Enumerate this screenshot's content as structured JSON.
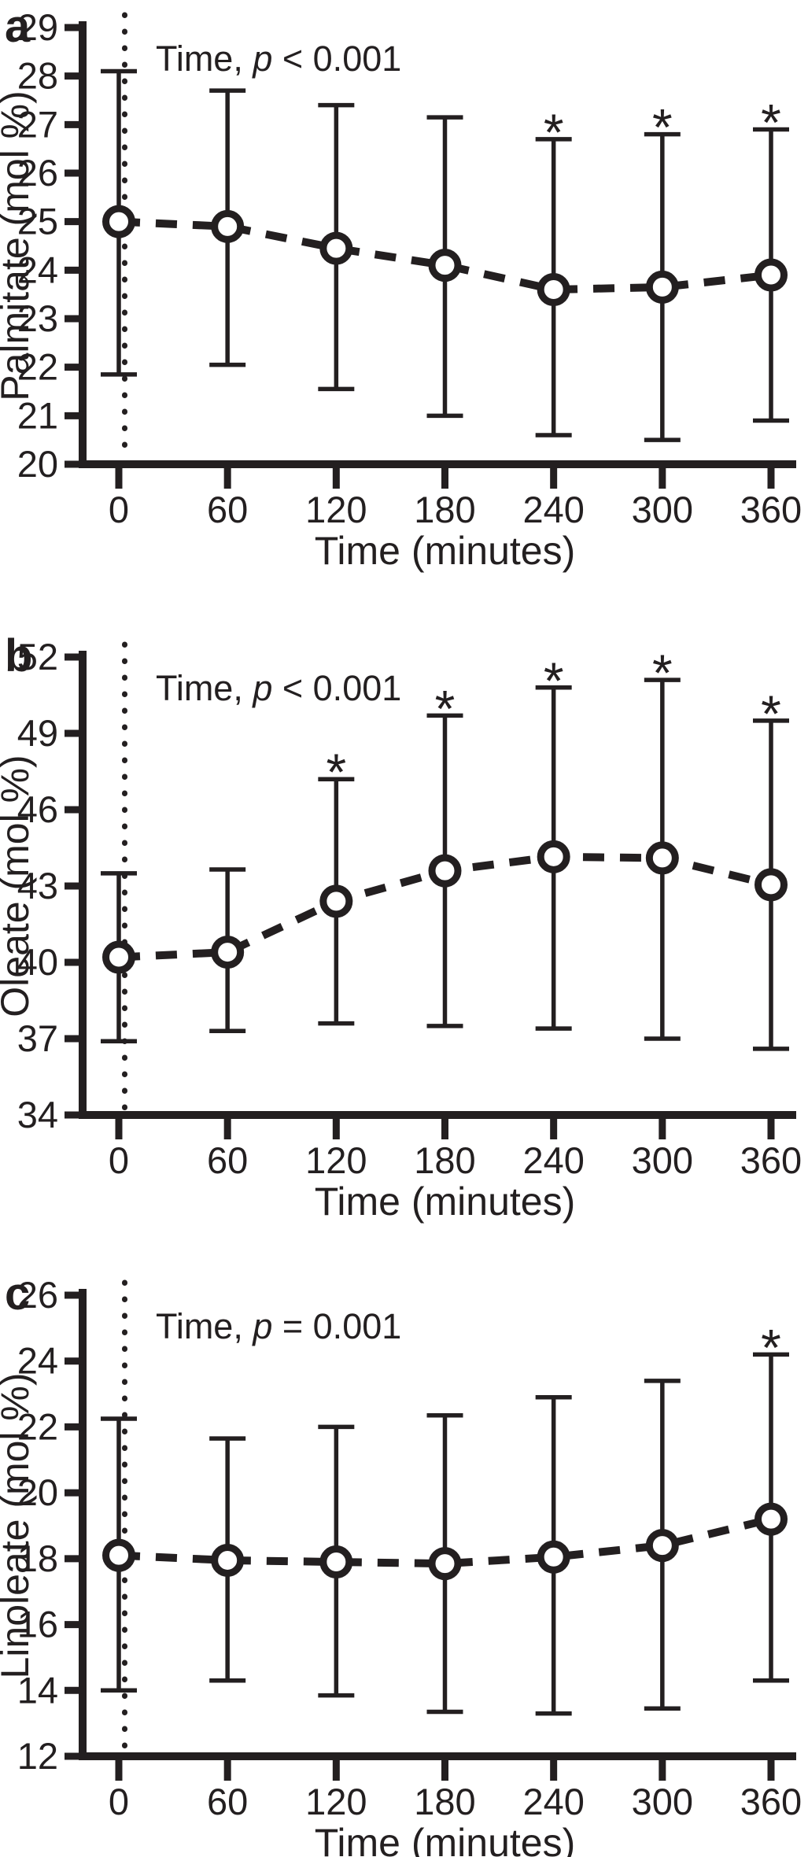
{
  "figure": {
    "background": "#ffffff",
    "ink_color": "#231f20",
    "marker": "open-circle",
    "line_style": "dashed",
    "error_bar_style": "capped-whiskers",
    "significance_symbol": "*"
  },
  "chart_data": [
    {
      "type": "line",
      "panel_label": "a",
      "annotation": {
        "prefix": "Time, ",
        "symbol": "p",
        "suffix": " < 0.001"
      },
      "xlabel": "Time (minutes)",
      "ylabel": "Palmitate (mol %)",
      "x": [
        0,
        60,
        120,
        180,
        240,
        300,
        360
      ],
      "x_tick_labels": [
        "0",
        "60",
        "120",
        "180",
        "240",
        "300",
        "360"
      ],
      "xlim": [
        0,
        360
      ],
      "ylim": [
        20,
        29
      ],
      "y_ticks": [
        20,
        21,
        22,
        23,
        24,
        25,
        26,
        27,
        28,
        29
      ],
      "grid": false,
      "zero_time_dotted_line": true,
      "series": [
        {
          "name": "Palmitate",
          "values": [
            25.0,
            24.9,
            24.45,
            24.1,
            23.6,
            23.65,
            23.9
          ],
          "err_low": [
            21.85,
            22.05,
            21.55,
            21.0,
            20.6,
            20.5,
            20.9
          ],
          "err_high": [
            28.1,
            27.7,
            27.4,
            27.15,
            26.7,
            26.8,
            26.9
          ]
        }
      ],
      "significant": [
        false,
        false,
        false,
        false,
        true,
        true,
        true
      ]
    },
    {
      "type": "line",
      "panel_label": "b",
      "annotation": {
        "prefix": "Time, ",
        "symbol": "p",
        "suffix": " < 0.001"
      },
      "xlabel": "Time (minutes)",
      "ylabel": "Oleate (mol %)",
      "x": [
        0,
        60,
        120,
        180,
        240,
        300,
        360
      ],
      "x_tick_labels": [
        "0",
        "60",
        "120",
        "180",
        "240",
        "300",
        "360"
      ],
      "xlim": [
        0,
        360
      ],
      "ylim": [
        34,
        52
      ],
      "y_ticks": [
        34,
        37,
        40,
        43,
        46,
        49,
        52
      ],
      "grid": false,
      "zero_time_dotted_line": true,
      "series": [
        {
          "name": "Oleate",
          "values": [
            40.2,
            40.4,
            42.4,
            43.6,
            44.15,
            44.1,
            43.05
          ],
          "err_low": [
            36.9,
            37.3,
            37.6,
            37.5,
            37.4,
            37.0,
            36.6
          ],
          "err_high": [
            43.5,
            43.65,
            47.2,
            49.7,
            50.8,
            51.1,
            49.5
          ]
        }
      ],
      "significant": [
        false,
        false,
        true,
        true,
        true,
        true,
        true
      ]
    },
    {
      "type": "line",
      "panel_label": "c",
      "annotation": {
        "prefix": "Time, ",
        "symbol": "p",
        "suffix": " = 0.001"
      },
      "xlabel": "Time (minutes)",
      "ylabel": "Linoleate (mol %)",
      "x": [
        0,
        60,
        120,
        180,
        240,
        300,
        360
      ],
      "x_tick_labels": [
        "0",
        "60",
        "120",
        "180",
        "240",
        "300",
        "360"
      ],
      "xlim": [
        0,
        360
      ],
      "ylim": [
        12,
        26
      ],
      "y_ticks": [
        12,
        14,
        16,
        18,
        20,
        22,
        24,
        26
      ],
      "grid": false,
      "zero_time_dotted_line": true,
      "series": [
        {
          "name": "Linoleate",
          "values": [
            18.1,
            17.95,
            17.9,
            17.85,
            18.05,
            18.4,
            19.2
          ],
          "err_low": [
            14.0,
            14.3,
            13.85,
            13.35,
            13.3,
            13.45,
            14.3
          ],
          "err_high": [
            22.25,
            21.65,
            22.0,
            22.35,
            22.9,
            23.4,
            24.2
          ]
        }
      ],
      "significant": [
        false,
        false,
        false,
        false,
        false,
        false,
        true
      ]
    }
  ]
}
